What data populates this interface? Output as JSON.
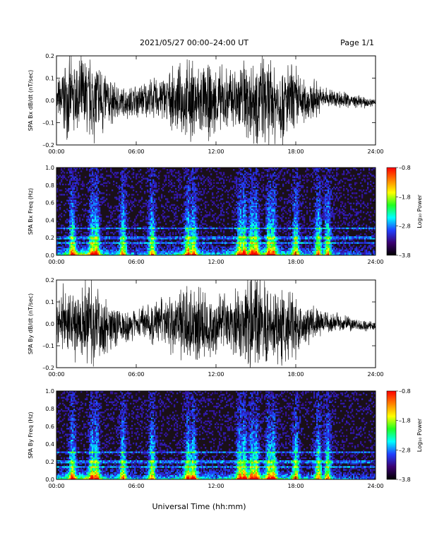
{
  "header": {
    "title": "2021/05/27  00:00–24:00 UT",
    "page": "Page 1/1"
  },
  "colors": {
    "trace": "#000000",
    "spectrogram_background": "#1a1018",
    "colorbar": [
      "#000000",
      "#3a0070",
      "#2040ff",
      "#00ffff",
      "#20ff20",
      "#ffff00",
      "#ff8000",
      "#ff0000"
    ]
  },
  "chart_data": [
    {
      "type": "line",
      "ylabel": "SPA Bx dB/dt (nT/sec)",
      "ylim": [
        -0.2,
        0.2
      ],
      "yticks": [
        "0.2",
        "0.1",
        "0.0",
        "–0.1",
        "–0.2"
      ],
      "xticks": [
        "00:00",
        "06:00",
        "12:00",
        "18:00",
        "24:00"
      ],
      "xlim_hours": [
        0,
        24
      ],
      "envelope": {
        "x_hours": [
          0,
          0.5,
          1,
          1.5,
          2,
          2.5,
          3,
          3.5,
          4,
          5,
          6,
          7,
          8,
          9,
          10,
          11,
          12,
          13,
          14,
          14.5,
          15,
          16,
          17,
          17.5,
          18,
          18.5,
          19,
          19.5,
          20,
          21,
          22,
          23,
          24
        ],
        "amplitude": [
          0.08,
          0.19,
          0.2,
          0.2,
          0.22,
          0.22,
          0.22,
          0.2,
          0.12,
          0.08,
          0.09,
          0.1,
          0.12,
          0.16,
          0.22,
          0.2,
          0.18,
          0.17,
          0.2,
          0.24,
          0.24,
          0.22,
          0.22,
          0.2,
          0.2,
          0.12,
          0.11,
          0.1,
          0.06,
          0.05,
          0.04,
          0.03,
          0.02
        ]
      }
    },
    {
      "type": "heatmap",
      "ylabel": "SPA Bx Freq (Hz)",
      "ylim": [
        0,
        1
      ],
      "yticks": [
        "1.0",
        "0.8",
        "0.6",
        "0.4",
        "0.2",
        "0.0"
      ],
      "xticks": [
        "00:00",
        "06:00",
        "12:00",
        "18:00",
        "24:00"
      ],
      "xlim_hours": [
        0,
        24
      ],
      "colorbar_label": "Log₁₀ Power",
      "colorbar_ticks": [
        "–0.8",
        "–1.8",
        "–2.8",
        "–3.8"
      ],
      "colorbar_range": [
        -3.8,
        -0.8
      ],
      "bursts_hours": [
        1.2,
        2.7,
        3.0,
        5.0,
        7.2,
        9.9,
        10.3,
        13.8,
        14.1,
        14.7,
        15.0,
        16.0,
        16.3,
        18.0,
        19.7,
        20.4
      ],
      "band_lines_hz": [
        0.14,
        0.2,
        0.31
      ]
    },
    {
      "type": "line",
      "ylabel": "SPA By dB/dt (nT/sec)",
      "ylim": [
        -0.2,
        0.2
      ],
      "yticks": [
        "0.2",
        "0.1",
        "0.0",
        "–0.1",
        "–0.2"
      ],
      "xticks": [
        "00:00",
        "06:00",
        "12:00",
        "18:00",
        "24:00"
      ],
      "xlim_hours": [
        0,
        24
      ],
      "envelope": {
        "x_hours": [
          0,
          0.5,
          1,
          1.5,
          2,
          2.5,
          3,
          3.5,
          4,
          5,
          6,
          7,
          8,
          9,
          10,
          11,
          12,
          13,
          14,
          14.5,
          15,
          16,
          17,
          17.5,
          18,
          18.5,
          19,
          19.5,
          20,
          21,
          22,
          23,
          24
        ],
        "amplitude": [
          0.08,
          0.19,
          0.2,
          0.22,
          0.22,
          0.22,
          0.22,
          0.2,
          0.13,
          0.08,
          0.08,
          0.1,
          0.13,
          0.17,
          0.22,
          0.2,
          0.17,
          0.16,
          0.2,
          0.24,
          0.24,
          0.22,
          0.2,
          0.18,
          0.18,
          0.12,
          0.1,
          0.09,
          0.06,
          0.05,
          0.04,
          0.03,
          0.02
        ]
      }
    },
    {
      "type": "heatmap",
      "ylabel": "SPA By Freq (Hz)",
      "ylim": [
        0,
        1
      ],
      "yticks": [
        "1.0",
        "0.8",
        "0.6",
        "0.4",
        "0.2",
        "0.0"
      ],
      "xticks": [
        "00:00",
        "06:00",
        "12:00",
        "18:00",
        "24:00"
      ],
      "xlim_hours": [
        0,
        24
      ],
      "colorbar_label": "Log₁₀ Power",
      "colorbar_ticks": [
        "–0.8",
        "–1.8",
        "–2.8",
        "–3.8"
      ],
      "colorbar_range": [
        -3.8,
        -0.8
      ],
      "bursts_hours": [
        1.2,
        2.7,
        3.0,
        5.0,
        7.2,
        9.9,
        10.3,
        13.8,
        14.1,
        14.7,
        15.0,
        16.0,
        16.3,
        18.0,
        19.7,
        20.4
      ],
      "band_lines_hz": [
        0.14,
        0.2,
        0.31
      ]
    }
  ],
  "xlabel": "Universal Time (hh:mm)"
}
